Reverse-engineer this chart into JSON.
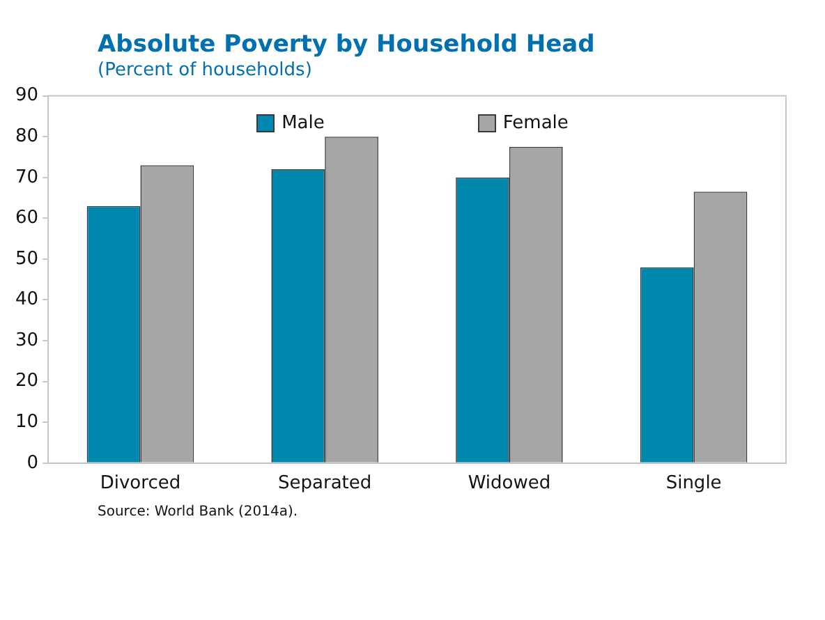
{
  "chart_data": {
    "type": "bar",
    "title": "Absolute Poverty by Household Head",
    "subtitle": "(Percent of households)",
    "categories": [
      "Divorced",
      "Separated",
      "Widowed",
      "Single"
    ],
    "series": [
      {
        "name": "Male",
        "color": "#0087ad",
        "values": [
          63,
          72,
          70,
          48
        ]
      },
      {
        "name": "Female",
        "color": "#a6a6a6",
        "values": [
          73,
          80,
          77.5,
          66.5
        ]
      }
    ],
    "ylim": [
      0,
      90
    ],
    "yticks": [
      0,
      10,
      20,
      30,
      40,
      50,
      60,
      70,
      80,
      90
    ],
    "grid": false,
    "legend": "top",
    "annotations": [
      "Source: World Bank (2014a)."
    ]
  }
}
